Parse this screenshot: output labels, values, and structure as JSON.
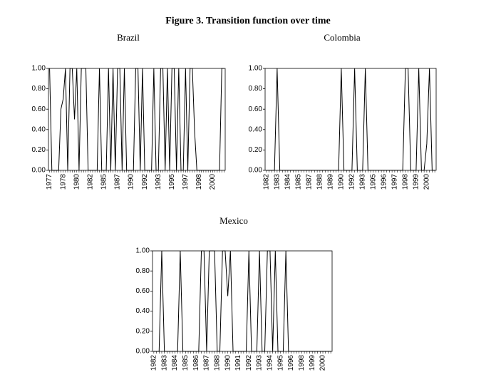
{
  "title": "Figure 3. Transition function over time",
  "chart_data": [
    {
      "type": "line",
      "title": "Brazil",
      "color": "#000000",
      "categories": [
        "1977",
        null,
        null,
        null,
        null,
        null,
        "1978",
        null,
        null,
        null,
        null,
        null,
        "1980",
        null,
        null,
        null,
        null,
        null,
        "1982",
        null,
        null,
        null,
        null,
        null,
        "1985",
        null,
        null,
        null,
        null,
        null,
        "1987",
        null,
        null,
        null,
        null,
        null,
        "1990",
        null,
        null,
        null,
        null,
        null,
        "1992",
        null,
        null,
        null,
        null,
        null,
        "1993",
        null,
        null,
        null,
        null,
        null,
        "1995",
        null,
        null,
        null,
        null,
        null,
        "1997",
        null,
        null,
        null,
        null,
        null,
        "1998",
        null,
        null,
        null,
        null,
        null,
        "2000",
        null,
        null,
        null,
        null,
        null
      ],
      "values": [
        1,
        0,
        0,
        0,
        0,
        0.6,
        0.7,
        1,
        0,
        1,
        1,
        0.5,
        1,
        0,
        1,
        1,
        1,
        0,
        0,
        0,
        0,
        0,
        1,
        0,
        0,
        0,
        1,
        0,
        1,
        0,
        1,
        1,
        0,
        1,
        0,
        0,
        0,
        0,
        1,
        1,
        0,
        1,
        0,
        0,
        0,
        0,
        1,
        0,
        0,
        1,
        1,
        0,
        1,
        0,
        1,
        1,
        0,
        1,
        0,
        0,
        1,
        0,
        1,
        1,
        0.38,
        0,
        0,
        0,
        0,
        0,
        0,
        0,
        0,
        0,
        0,
        0,
        1,
        1
      ],
      "ylim": [
        0,
        1
      ],
      "yticks": [
        {
          "value": 0,
          "label": "0.00"
        },
        {
          "value": 0.2,
          "label": "0.20"
        },
        {
          "value": 0.4,
          "label": "0.40"
        },
        {
          "value": 0.6,
          "label": "0.60"
        },
        {
          "value": 0.8,
          "label": "0.80"
        },
        {
          "value": 1,
          "label": "1.00"
        }
      ]
    },
    {
      "type": "line",
      "title": "Colombia",
      "color": "#000000",
      "categories": [
        "1982",
        null,
        null,
        null,
        "1983",
        null,
        null,
        null,
        "1984",
        null,
        null,
        null,
        "1985",
        null,
        null,
        null,
        "1987",
        null,
        null,
        null,
        "1988",
        null,
        null,
        null,
        "1989",
        null,
        null,
        null,
        "1990",
        null,
        null,
        null,
        "1992",
        null,
        null,
        null,
        "1993",
        null,
        null,
        null,
        "1995",
        null,
        null,
        null,
        "1996",
        null,
        null,
        null,
        "1997",
        null,
        null,
        null,
        "1998",
        null,
        null,
        null,
        "1999",
        null,
        null,
        null,
        "2000",
        null,
        null,
        null
      ],
      "values": [
        0,
        0,
        0,
        0,
        1,
        0,
        0,
        0,
        0,
        0,
        0,
        0,
        0,
        0,
        0,
        0,
        0,
        0,
        0,
        0,
        0,
        0,
        0,
        0,
        0,
        0,
        0,
        0,
        1,
        0,
        0,
        0,
        0,
        1,
        0,
        0,
        0,
        1,
        0,
        0,
        0,
        0,
        0,
        0,
        0,
        0,
        0,
        0,
        0,
        0,
        0,
        0,
        1,
        1,
        0,
        0,
        0,
        1,
        0,
        0,
        0.26,
        1,
        0,
        0
      ],
      "ylim": [
        0,
        1
      ],
      "yticks": [
        {
          "value": 0,
          "label": "0.00"
        },
        {
          "value": 0.2,
          "label": "0.20"
        },
        {
          "value": 0.4,
          "label": "0.40"
        },
        {
          "value": 0.6,
          "label": "0.60"
        },
        {
          "value": 0.8,
          "label": "0.80"
        },
        {
          "value": 1,
          "label": "1.00"
        }
      ]
    },
    {
      "type": "line",
      "title": "Mexico",
      "color": "#000000",
      "categories": [
        "1982",
        null,
        null,
        null,
        "1983",
        null,
        null,
        null,
        "1984",
        null,
        null,
        null,
        "1985",
        null,
        null,
        null,
        "1986",
        null,
        null,
        null,
        "1987",
        null,
        null,
        null,
        "1988",
        null,
        null,
        null,
        "1990",
        null,
        null,
        null,
        "1991",
        null,
        null,
        null,
        "1992",
        null,
        null,
        null,
        "1993",
        null,
        null,
        null,
        "1994",
        null,
        null,
        null,
        "1995",
        null,
        null,
        null,
        "1996",
        null,
        null,
        null,
        "1998",
        null,
        null,
        null,
        "1999",
        null,
        null,
        null,
        "2000",
        null,
        null,
        null
      ],
      "values": [
        0,
        0,
        0,
        1,
        0,
        0,
        0,
        0,
        0,
        0,
        1,
        0,
        0,
        0,
        0,
        0,
        0,
        0,
        1,
        1,
        0,
        1,
        1,
        1,
        0,
        0,
        1,
        1,
        0.55,
        1,
        0,
        0,
        0,
        0,
        0,
        0,
        1,
        0,
        0,
        0,
        1,
        0,
        0,
        1,
        1,
        0,
        1,
        0,
        0,
        0,
        1,
        0,
        0,
        0,
        0,
        0,
        0,
        0,
        0,
        0,
        0,
        0,
        0,
        0,
        0,
        0,
        0,
        0
      ],
      "ylim": [
        0,
        1
      ],
      "yticks": [
        {
          "value": 0,
          "label": "0.00"
        },
        {
          "value": 0.2,
          "label": "0.20"
        },
        {
          "value": 0.4,
          "label": "0.40"
        },
        {
          "value": 0.6,
          "label": "0.60"
        },
        {
          "value": 0.8,
          "label": "0.80"
        },
        {
          "value": 1,
          "label": "1.00"
        }
      ]
    }
  ]
}
